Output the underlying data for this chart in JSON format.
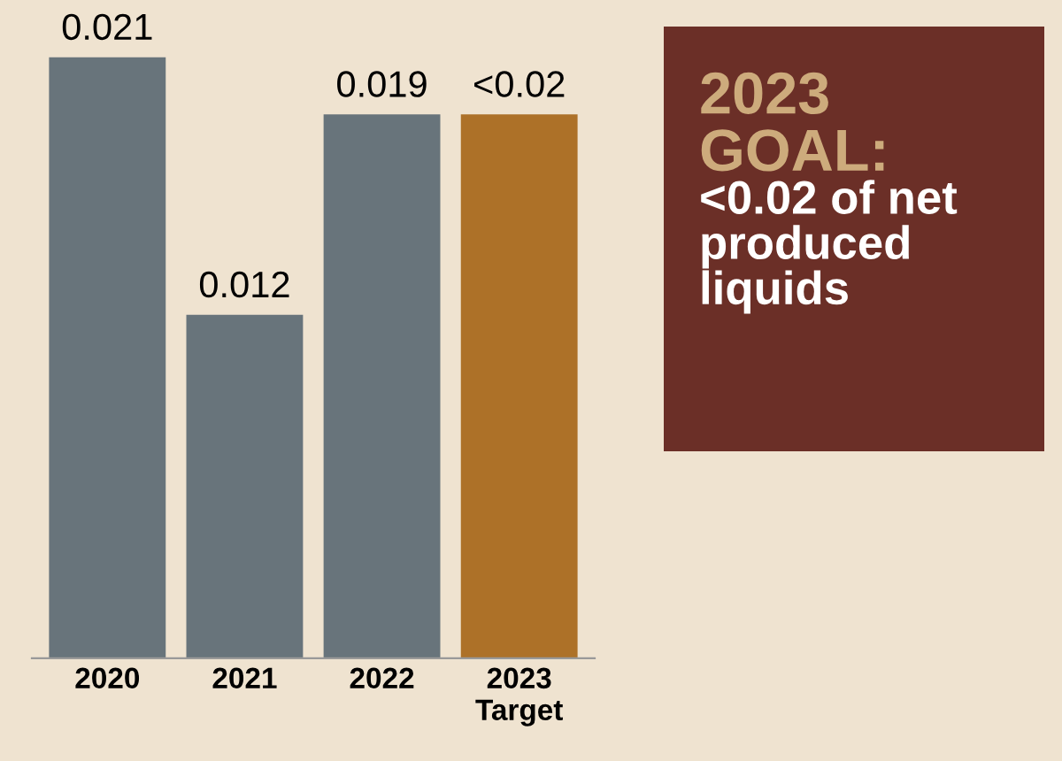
{
  "chart_data": {
    "type": "bar",
    "categories": [
      "2020",
      "2021",
      "2022",
      "2023\nTarget"
    ],
    "values": [
      0.021,
      0.012,
      0.019,
      0.019
    ],
    "colors": [
      "#68747b",
      "#68747b",
      "#68747b",
      "#ad7128"
    ],
    "value_labels": [
      "0.021",
      "0.012",
      "0.019",
      "<0.02"
    ],
    "annotations": [
      "2023\nGOAL:",
      "<0.02 of net\nproduced\nliquids"
    ],
    "grid": false,
    "legend": false
  }
}
